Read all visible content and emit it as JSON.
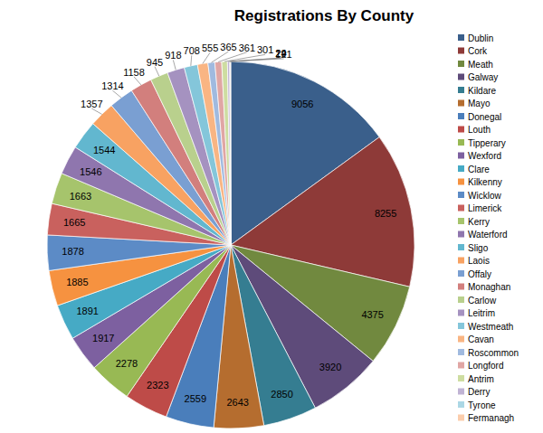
{
  "chart_data": {
    "type": "pie",
    "title": "Registrations By County",
    "categories": [
      "Dublin",
      "Cork",
      "Meath",
      "Galway",
      "Kildare",
      "Mayo",
      "Donegal",
      "Louth",
      "Tipperary",
      "Wexford",
      "Clare",
      "Kilkenny",
      "Wicklow",
      "Limerick",
      "Kerry",
      "Waterford",
      "Sligo",
      "Laois",
      "Offaly",
      "Monaghan",
      "Carlow",
      "Leitrim",
      "Westmeath",
      "Cavan",
      "Roscommon",
      "Longford",
      "Antrim",
      "Derry",
      "Tyrone",
      "Fermanagh"
    ],
    "values": [
      9056,
      8255,
      4375,
      3920,
      2850,
      2643,
      2559,
      2323,
      2278,
      1917,
      1891,
      1885,
      1878,
      1665,
      1663,
      1546,
      1544,
      1357,
      1314,
      1158,
      945,
      918,
      708,
      555,
      365,
      361,
      301,
      121,
      29,
      24
    ],
    "colors": [
      "#3a5f8b",
      "#8e3a38",
      "#71893f",
      "#5e4b7a",
      "#357d91",
      "#b56d2f",
      "#4a7ebb",
      "#be4b48",
      "#98b954",
      "#7d60a0",
      "#46aac5",
      "#f69240",
      "#5c8bc6",
      "#c9615e",
      "#a6c46c",
      "#8f76ae",
      "#62b7cf",
      "#f8a262",
      "#7a9fd2",
      "#d27f7d",
      "#b9d08d",
      "#a592c0",
      "#84c6da",
      "#f9b583",
      "#a0badf",
      "#e0a6a4",
      "#cedda1",
      "#c0b3d4",
      "#abd7e5",
      "#fbcdac"
    ],
    "data_labels": true,
    "legend": "right"
  }
}
